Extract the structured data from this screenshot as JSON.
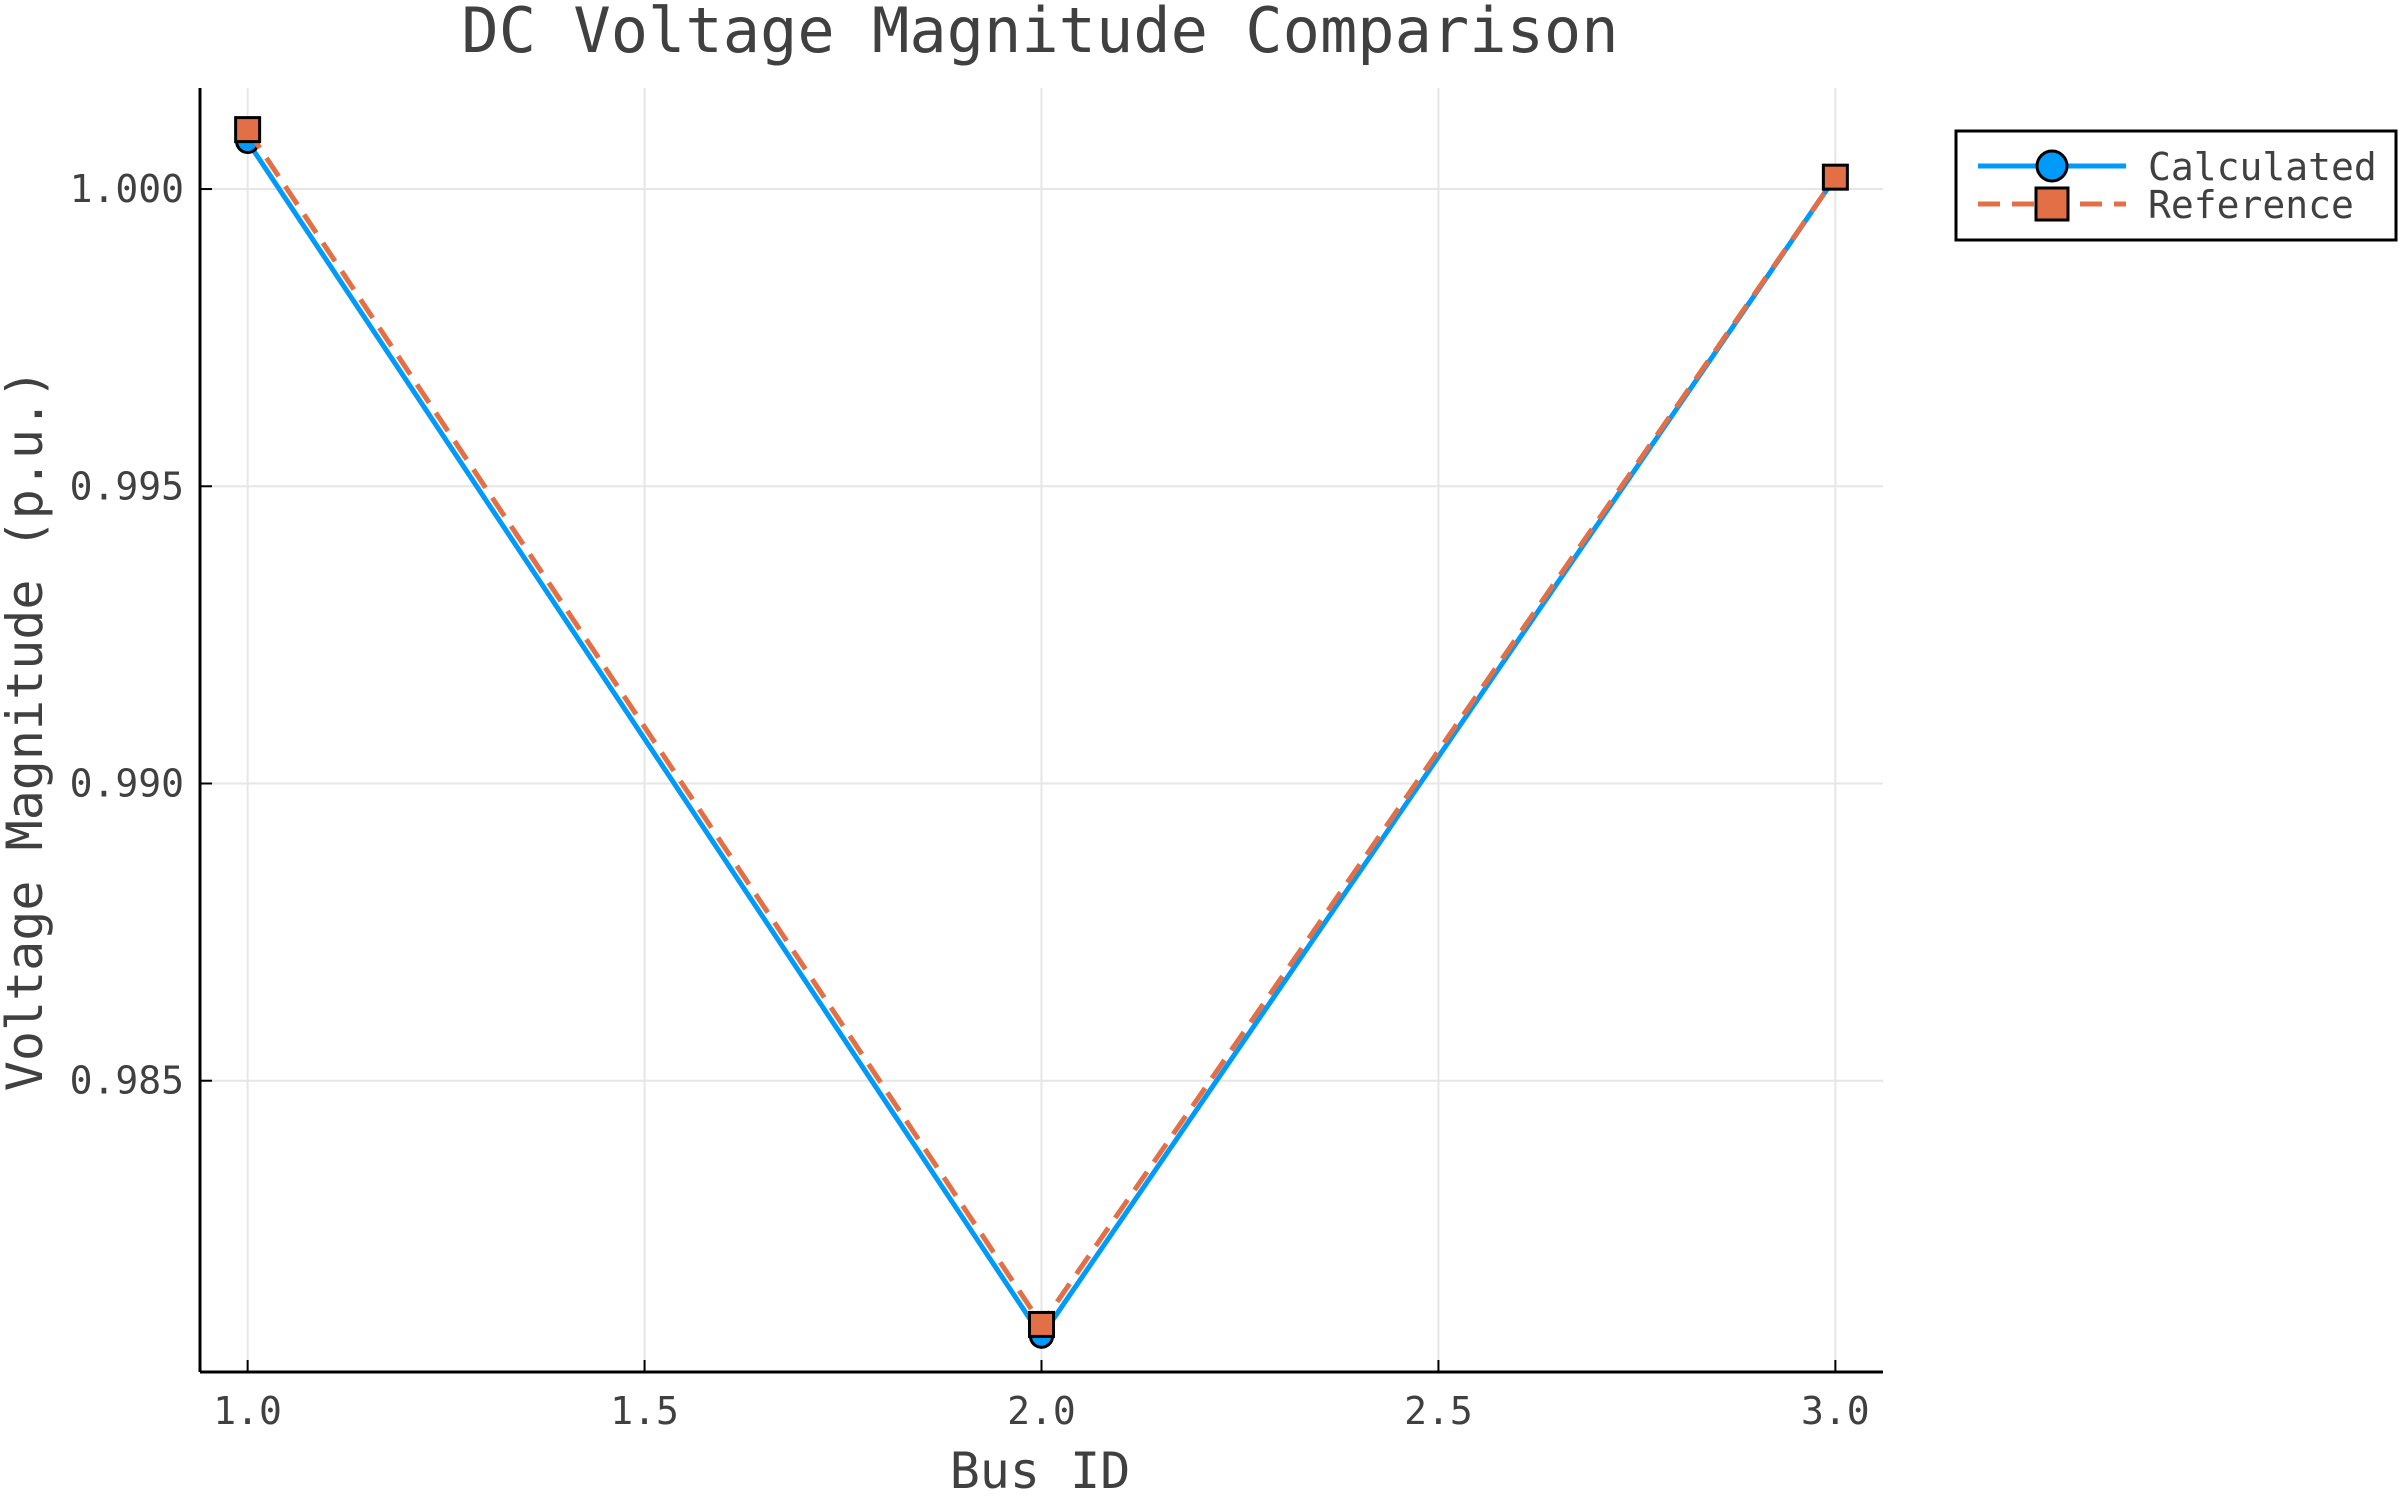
{
  "chart_data": {
    "type": "line",
    "title": "DC Voltage Magnitude Comparison",
    "xlabel": "Bus ID",
    "ylabel": "Voltage Magnitude (p.u.)",
    "x": [
      1,
      2,
      3
    ],
    "xlim": [
      0.94,
      3.06
    ],
    "ylim": [
      0.9801,
      1.0017
    ],
    "xticks": [
      "1.0",
      "1.5",
      "2.0",
      "2.5",
      "3.0"
    ],
    "xtick_values": [
      1.0,
      1.5,
      2.0,
      2.5,
      3.0
    ],
    "yticks": [
      "0.985",
      "0.990",
      "0.995",
      "1.000"
    ],
    "ytick_values": [
      0.985,
      0.99,
      0.995,
      1.0
    ],
    "grid": true,
    "legend_position": "top-right (outside plot)",
    "series": [
      {
        "name": "Calculated",
        "values": [
          1.0008,
          0.9807,
          1.0002
        ],
        "color": "#009AFA",
        "marker": "circle",
        "line": "solid"
      },
      {
        "name": "Reference",
        "values": [
          1.001,
          0.9809,
          1.0002
        ],
        "color": "#E36F47",
        "marker": "square",
        "line": "dashed"
      }
    ]
  }
}
